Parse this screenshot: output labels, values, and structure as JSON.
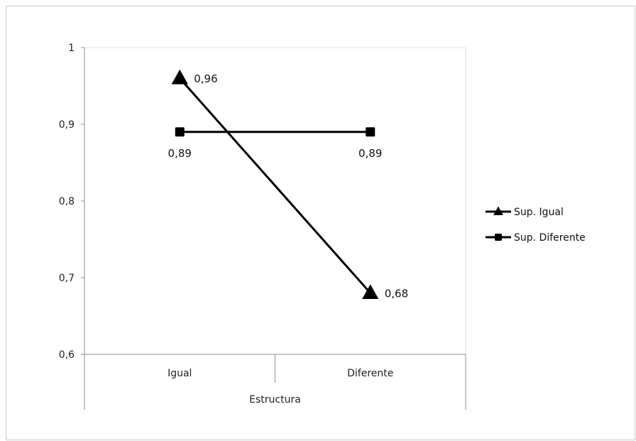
{
  "chart_data": {
    "type": "line",
    "categories": [
      "Igual",
      "Diferente"
    ],
    "group_label": "Estructura",
    "ylim": [
      0.6,
      1.0
    ],
    "yticks": [
      0.6,
      0.7,
      0.8,
      0.9,
      1.0
    ],
    "ytick_labels": [
      "0,6",
      "0,7",
      "0,8",
      "0,9",
      "1"
    ],
    "grid": false,
    "legend_position": "right",
    "series": [
      {
        "name": "Sup. Igual",
        "marker": "triangle",
        "color": "#000000",
        "values": [
          0.96,
          0.68
        ],
        "value_labels": [
          "0,96",
          "0,68"
        ]
      },
      {
        "name": "Sup. Diferente",
        "marker": "square",
        "color": "#000000",
        "values": [
          0.89,
          0.89
        ],
        "value_labels": [
          "0,89",
          "0,89"
        ]
      }
    ]
  }
}
